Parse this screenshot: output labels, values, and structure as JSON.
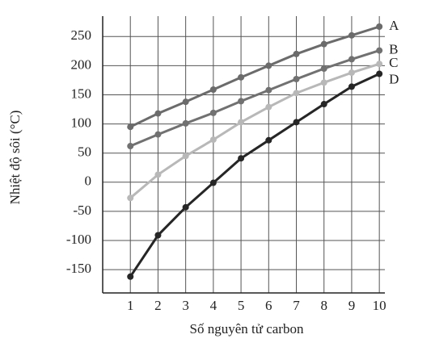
{
  "chart_data": {
    "type": "line",
    "x_label": "Số nguyên tử carbon",
    "y_label": "Nhiệt độ sôi (°C)",
    "x": [
      1,
      2,
      3,
      4,
      5,
      6,
      7,
      8,
      9,
      10
    ],
    "xlim": [
      0,
      10.2
    ],
    "xticks": [
      1,
      2,
      3,
      4,
      5,
      6,
      7,
      8,
      9,
      10
    ],
    "ylim": [
      -190,
      285
    ],
    "yticks": [
      -150,
      -100,
      -50,
      0,
      50,
      100,
      150,
      200,
      250
    ],
    "grid": true,
    "series": [
      {
        "name": "A",
        "color": "#6b6b6b",
        "values": [
          95,
          118,
          138,
          159,
          180,
          200,
          220,
          237,
          252,
          267
        ]
      },
      {
        "name": "B",
        "color": "#717171",
        "values": [
          62,
          82,
          101,
          119,
          139,
          158,
          177,
          195,
          211,
          226
        ]
      },
      {
        "name": "C",
        "color": "#b8b8b8",
        "values": [
          -27,
          13,
          45,
          73,
          103,
          129,
          153,
          171,
          188,
          203
        ]
      },
      {
        "name": "D",
        "color": "#262626",
        "values": [
          -162,
          -91,
          -43,
          -1,
          41,
          72,
          103,
          134,
          164,
          186
        ]
      }
    ]
  }
}
